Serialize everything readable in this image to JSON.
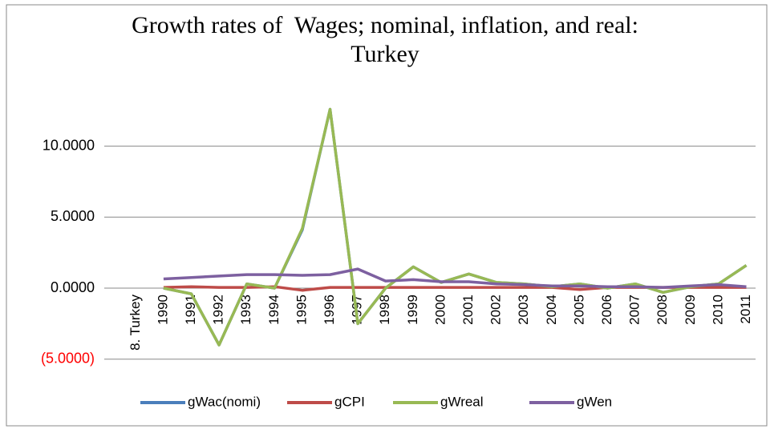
{
  "chart_data": {
    "type": "line",
    "title": "Growth rates of  Wages; nominal, inflation, and real: Turkey",
    "categories": [
      "8. Turkey",
      "1990",
      "1991",
      "1992",
      "1993",
      "1994",
      "1995",
      "1996",
      "1997",
      "1998",
      "1999",
      "2000",
      "2001",
      "2002",
      "2003",
      "2004",
      "2005",
      "2006",
      "2007",
      "2008",
      "2009",
      "2010",
      "2011"
    ],
    "series": [
      {
        "name": "gWac(nomi)",
        "color": "#4a7ebb",
        "values": [
          null,
          0.0,
          -0.4,
          -4.0,
          0.3,
          0.0,
          4.1,
          12.6,
          -2.5,
          0.0,
          1.5,
          0.4,
          1.0,
          0.4,
          0.3,
          0.1,
          0.3,
          0.0,
          0.3,
          -0.3,
          0.1,
          0.3,
          1.6
        ]
      },
      {
        "name": "gCPI",
        "color": "#be4b48",
        "values": [
          null,
          0.05,
          0.1,
          0.05,
          0.05,
          0.1,
          -0.15,
          0.05,
          0.05,
          0.05,
          0.05,
          0.05,
          0.05,
          0.05,
          0.05,
          0.05,
          -0.1,
          0.05,
          0.05,
          0.05,
          0.05,
          0.05,
          0.05
        ]
      },
      {
        "name": "gWreal",
        "color": "#98b954",
        "values": [
          null,
          0.0,
          -0.4,
          -4.0,
          0.3,
          0.0,
          4.2,
          12.6,
          -2.5,
          0.0,
          1.5,
          0.4,
          1.0,
          0.4,
          0.3,
          0.1,
          0.3,
          0.0,
          0.3,
          -0.3,
          0.1,
          0.3,
          1.6
        ]
      },
      {
        "name": "gWen",
        "color": "#7d60a0",
        "values": [
          null,
          0.65,
          0.75,
          0.85,
          0.95,
          0.95,
          0.9,
          0.95,
          1.35,
          0.5,
          0.6,
          0.45,
          0.45,
          0.3,
          0.25,
          0.15,
          0.15,
          0.1,
          0.1,
          0.05,
          0.15,
          0.25,
          0.1
        ]
      }
    ],
    "ylim": [
      -5,
      12.6
    ],
    "yticks": [
      {
        "value": -5,
        "label": "(5.0000)",
        "color": "#ff0000"
      },
      {
        "value": 0,
        "label": "0.0000"
      },
      {
        "value": 5,
        "label": "5.0000"
      },
      {
        "value": 10,
        "label": "10.0000"
      }
    ],
    "grid": true,
    "legend": "bottom"
  }
}
